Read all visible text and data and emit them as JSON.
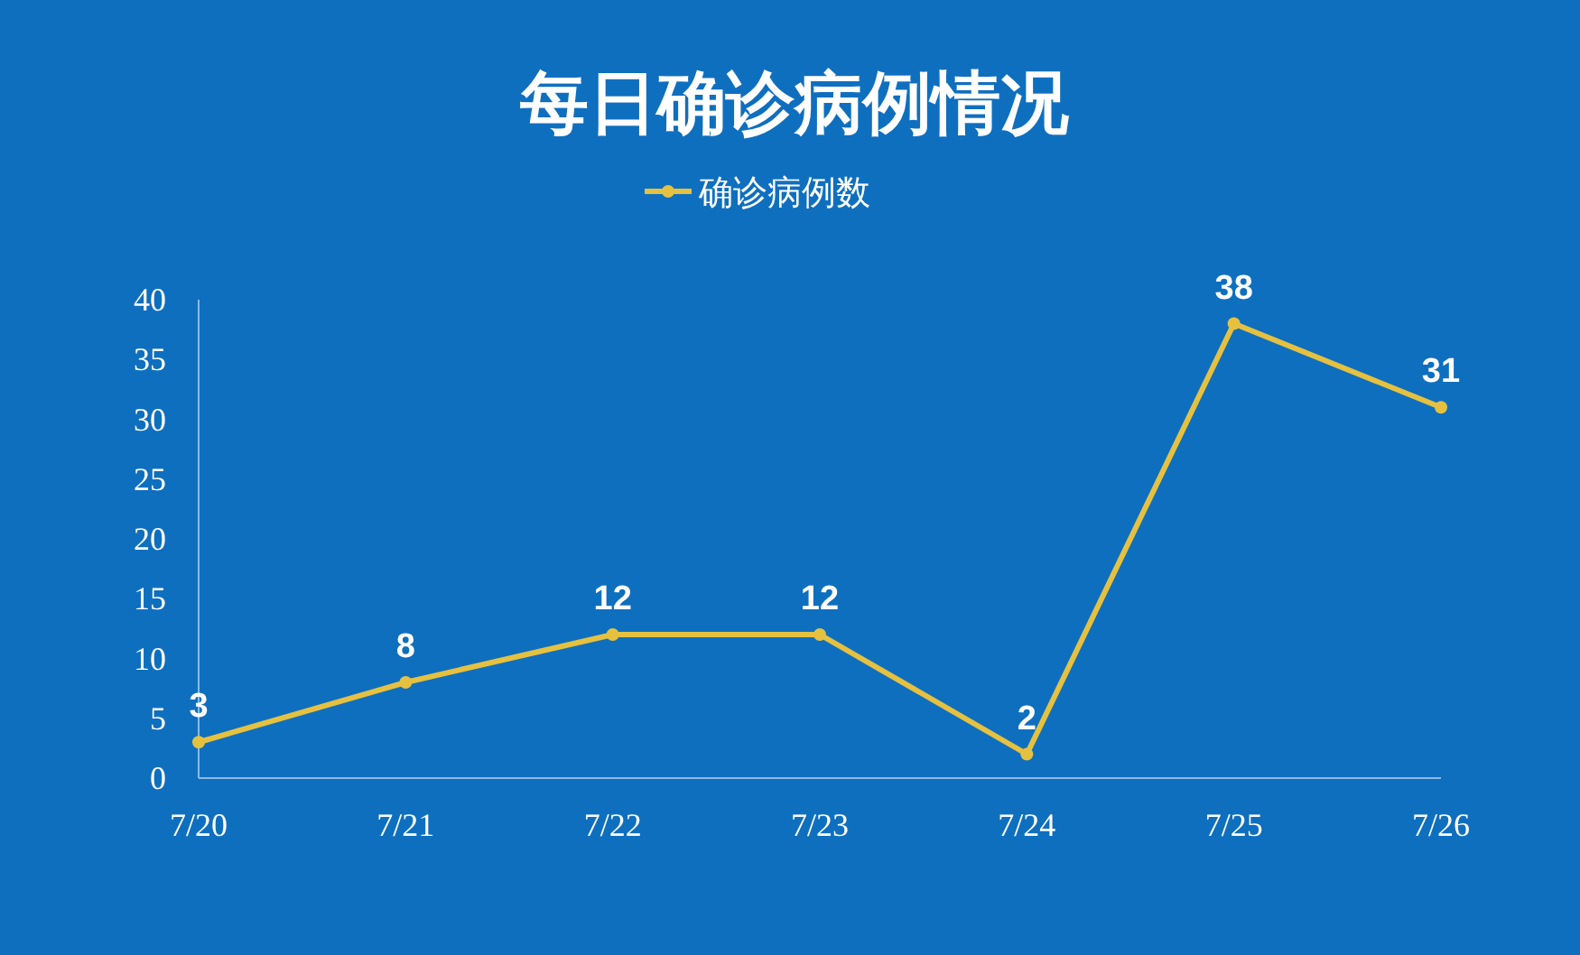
{
  "chart_data": {
    "type": "line",
    "title": "每日确诊病例情况",
    "categories": [
      "7/20",
      "7/21",
      "7/22",
      "7/23",
      "7/24",
      "7/25",
      "7/26"
    ],
    "series": [
      {
        "name": "确诊病例数",
        "color": "#e6c13f",
        "values": [
          3,
          8,
          12,
          12,
          2,
          38,
          31
        ]
      }
    ],
    "ylim": [
      0,
      40
    ],
    "yticks": [
      0,
      5,
      10,
      15,
      20,
      25,
      30,
      35,
      40
    ],
    "data_labels": true,
    "legend": "top",
    "marker": "circle",
    "grid": false
  }
}
